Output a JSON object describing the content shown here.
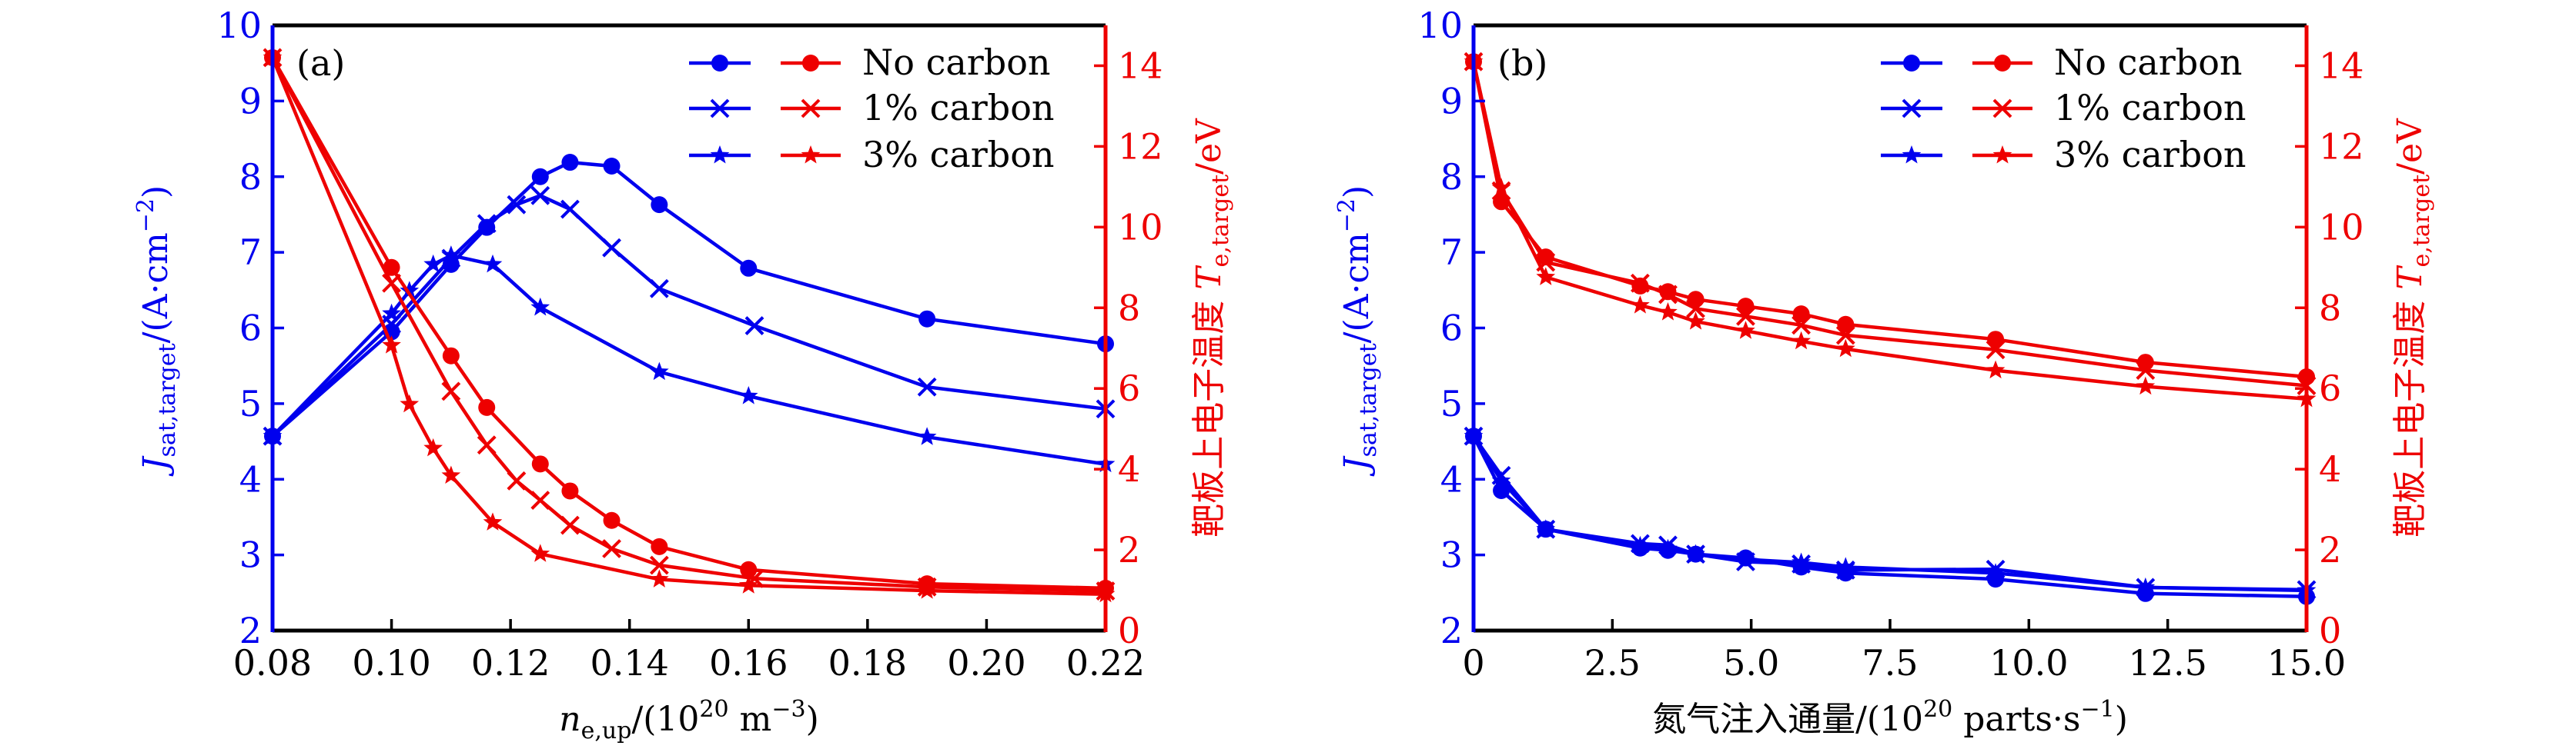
{
  "colors": {
    "left_axis": "#0000EE",
    "right_axis": "#EE0000",
    "frame": "#000000"
  },
  "chart_data": [
    {
      "type": "line",
      "panel_label": "(a)",
      "title": "",
      "xlabel": "n_e,up/(10^20 m^-3)",
      "xlabel_parts": {
        "main": "n",
        "sub": "e,up",
        "rest1": "/(10",
        "sup1": "20",
        "rest2": " m",
        "sup2": "−3",
        "rest3": ")"
      },
      "ylabel_left": "J_sat,target/(A·cm^-2)",
      "ylabel_left_parts": {
        "main": "J",
        "sub": "sat,target",
        "rest1": "/(A·cm",
        "sup1": "−2",
        "rest2": ")"
      },
      "ylabel_right": "靶板上电子温度 T_e,target/eV",
      "ylabel_right_parts": {
        "cn": "靶板上电子温度 ",
        "main": "T",
        "sub": "e,target",
        "rest1": "/eV"
      },
      "xlim": [
        0.08,
        0.22
      ],
      "ylim_left": [
        2,
        10
      ],
      "ylim_right": [
        0,
        15
      ],
      "xticks": [
        0.08,
        0.1,
        0.12,
        0.14,
        0.16,
        0.18,
        0.2,
        0.22
      ],
      "xtick_labels": [
        "0.08",
        "0.10",
        "0.12",
        "0.14",
        "0.16",
        "0.18",
        "0.20",
        "0.22"
      ],
      "yticks_left": [
        2,
        3,
        4,
        5,
        6,
        7,
        8,
        9,
        10
      ],
      "ytick_labels_left": [
        "2",
        "3",
        "4",
        "5",
        "6",
        "7",
        "8",
        "9",
        "10"
      ],
      "yticks_right": [
        0,
        2,
        4,
        6,
        8,
        10,
        12,
        14
      ],
      "ytick_labels_right": [
        "0",
        "2",
        "4",
        "6",
        "8",
        "10",
        "12",
        "14"
      ],
      "grid": false,
      "legend": {
        "placement": "top-right",
        "entries": [
          "No carbon",
          "1% carbon",
          "3% carbon"
        ]
      },
      "series": [
        {
          "name": "No carbon",
          "axis": "left",
          "quantity": "J_sat,target",
          "marker": "circle",
          "x": [
            0.08,
            0.1,
            0.11,
            0.116,
            0.125,
            0.13,
            0.137,
            0.145,
            0.16,
            0.19,
            0.22
          ],
          "y": [
            4.57,
            5.95,
            6.84,
            7.33,
            8.0,
            8.19,
            8.14,
            7.63,
            6.79,
            6.12,
            5.79
          ]
        },
        {
          "name": "1% carbon",
          "axis": "left",
          "quantity": "J_sat,target",
          "marker": "x",
          "x": [
            0.08,
            0.1,
            0.11,
            0.116,
            0.121,
            0.125,
            0.13,
            0.137,
            0.145,
            0.161,
            0.19,
            0.22
          ],
          "y": [
            4.57,
            6.05,
            6.92,
            7.38,
            7.63,
            7.75,
            7.57,
            7.06,
            6.52,
            6.03,
            5.22,
            4.93
          ]
        },
        {
          "name": "3% carbon",
          "axis": "left",
          "quantity": "J_sat,target",
          "marker": "star",
          "x": [
            0.08,
            0.1,
            0.103,
            0.107,
            0.11,
            0.117,
            0.125,
            0.145,
            0.16,
            0.19,
            0.22
          ],
          "y": [
            4.57,
            6.19,
            6.49,
            6.84,
            6.96,
            6.84,
            6.27,
            5.42,
            5.1,
            4.56,
            4.2
          ]
        },
        {
          "name": "No carbon",
          "axis": "right",
          "quantity": "T_e,target",
          "marker": "circle",
          "x": [
            0.08,
            0.1,
            0.11,
            0.116,
            0.125,
            0.13,
            0.137,
            0.145,
            0.16,
            0.19,
            0.22
          ],
          "y": [
            14.2,
            9.0,
            6.81,
            5.53,
            4.13,
            3.46,
            2.73,
            2.08,
            1.51,
            1.16,
            1.05
          ]
        },
        {
          "name": "1% carbon",
          "axis": "right",
          "quantity": "T_e,target",
          "marker": "x",
          "x": [
            0.08,
            0.1,
            0.11,
            0.116,
            0.121,
            0.125,
            0.13,
            0.137,
            0.145,
            0.161,
            0.19,
            0.22
          ],
          "y": [
            14.2,
            8.61,
            5.93,
            4.6,
            3.71,
            3.23,
            2.61,
            2.03,
            1.62,
            1.29,
            1.08,
            0.98
          ]
        },
        {
          "name": "3% carbon",
          "axis": "right",
          "quantity": "T_e,target",
          "marker": "star",
          "x": [
            0.08,
            0.1,
            0.103,
            0.107,
            0.11,
            0.117,
            0.125,
            0.145,
            0.16,
            0.19,
            0.22
          ],
          "y": [
            14.2,
            7.07,
            5.61,
            4.52,
            3.84,
            2.68,
            1.9,
            1.27,
            1.12,
            0.99,
            0.9
          ]
        }
      ]
    },
    {
      "type": "line",
      "panel_label": "(b)",
      "title": "",
      "xlabel": "氮气注入通量/(10^20 parts·s^-1)",
      "xlabel_parts": {
        "main": "氮气注入通量/(10",
        "sup1": "20",
        "rest1": " parts·s",
        "sup2": "−1",
        "rest2": ")"
      },
      "ylabel_left": "J_sat,target/(A·cm^-2)",
      "ylabel_left_parts": {
        "main": "J",
        "sub": "sat,target",
        "rest1": "/(A·cm",
        "sup1": "−2",
        "rest2": ")"
      },
      "ylabel_right": "靶板上电子温度 T_e,target/eV",
      "ylabel_right_parts": {
        "cn": "靶板上电子温度 ",
        "main": "T",
        "sub": "e,target",
        "rest1": "/eV"
      },
      "xlim": [
        0,
        15
      ],
      "ylim_left": [
        2,
        10
      ],
      "ylim_right": [
        0,
        15
      ],
      "xticks": [
        0,
        2.5,
        5.0,
        7.5,
        10.0,
        12.5,
        15.0
      ],
      "xtick_labels": [
        "0",
        "2.5",
        "5.0",
        "7.5",
        "10.0",
        "12.5",
        "15.0"
      ],
      "yticks_left": [
        2,
        3,
        4,
        5,
        6,
        7,
        8,
        9,
        10
      ],
      "ytick_labels_left": [
        "2",
        "3",
        "4",
        "5",
        "6",
        "7",
        "8",
        "9",
        "10"
      ],
      "yticks_right": [
        0,
        2,
        4,
        6,
        8,
        10,
        12,
        14
      ],
      "ytick_labels_right": [
        "0",
        "2",
        "4",
        "6",
        "8",
        "10",
        "12",
        "14"
      ],
      "grid": false,
      "legend": {
        "placement": "top-right",
        "entries": [
          "No carbon",
          "1% carbon",
          "3% carbon"
        ]
      },
      "series": [
        {
          "name": "No carbon",
          "axis": "left",
          "quantity": "J_sat,target",
          "marker": "circle",
          "x": [
            0,
            0.5,
            1.3,
            3.0,
            3.5,
            4.0,
            4.9,
            5.9,
            6.7,
            9.4,
            12.1,
            15.0
          ],
          "y": [
            4.57,
            3.85,
            3.34,
            3.09,
            3.06,
            3.01,
            2.96,
            2.84,
            2.76,
            2.68,
            2.49,
            2.45
          ]
        },
        {
          "name": "1% carbon",
          "axis": "left",
          "quantity": "J_sat,target",
          "marker": "x",
          "x": [
            0,
            0.5,
            1.3,
            3.0,
            3.5,
            4.0,
            4.9,
            5.9,
            6.7,
            9.4,
            12.1,
            15.0
          ],
          "y": [
            4.57,
            4.05,
            3.34,
            3.15,
            3.13,
            3.01,
            2.91,
            2.88,
            2.8,
            2.81,
            2.57,
            2.54
          ]
        },
        {
          "name": "3% carbon",
          "axis": "left",
          "quantity": "J_sat,target",
          "marker": "star",
          "x": [
            0,
            0.5,
            1.3,
            3.0,
            3.5,
            4.0,
            4.9,
            5.9,
            6.7,
            9.4,
            12.1,
            15.0
          ],
          "y": [
            4.57,
            3.98,
            3.34,
            3.12,
            3.08,
            3.01,
            2.94,
            2.9,
            2.84,
            2.76,
            2.57,
            2.53
          ]
        },
        {
          "name": "No carbon",
          "axis": "right",
          "quantity": "T_e,target",
          "marker": "circle",
          "x": [
            0,
            0.5,
            1.3,
            3.0,
            3.5,
            4.0,
            4.9,
            5.9,
            6.7,
            9.4,
            12.1,
            15.0
          ],
          "y": [
            14.1,
            10.63,
            9.26,
            8.54,
            8.4,
            8.21,
            8.04,
            7.85,
            7.59,
            7.22,
            6.65,
            6.29
          ]
        },
        {
          "name": "1% carbon",
          "axis": "right",
          "quantity": "T_e,target",
          "marker": "x",
          "x": [
            0,
            0.5,
            1.3,
            3.0,
            3.5,
            4.0,
            4.9,
            5.9,
            6.7,
            9.4,
            12.1,
            15.0
          ],
          "y": [
            14.1,
            10.9,
            9.13,
            8.61,
            8.33,
            7.98,
            7.79,
            7.57,
            7.32,
            6.96,
            6.45,
            6.07
          ]
        },
        {
          "name": "3% carbon",
          "axis": "right",
          "quantity": "T_e,target",
          "marker": "star",
          "x": [
            0,
            0.5,
            1.3,
            3.0,
            3.5,
            4.0,
            4.9,
            5.9,
            6.7,
            9.4,
            12.1,
            15.0
          ],
          "y": [
            14.1,
            10.97,
            8.76,
            8.06,
            7.89,
            7.66,
            7.43,
            7.17,
            6.98,
            6.45,
            6.05,
            5.74
          ]
        }
      ]
    }
  ]
}
